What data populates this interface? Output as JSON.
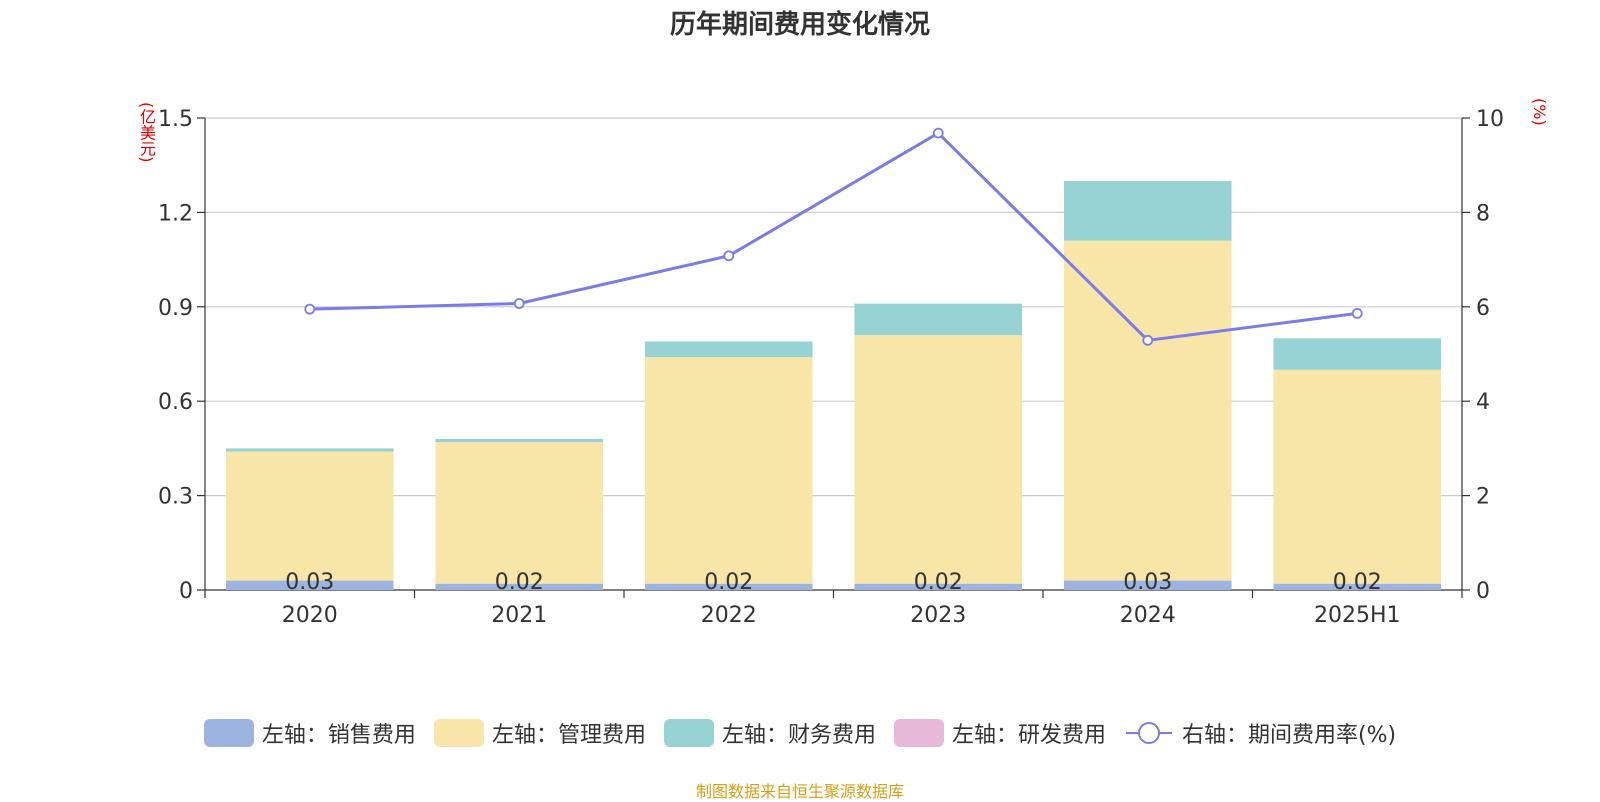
{
  "chart_data": {
    "type": "bar",
    "title": "历年期间费用变化情况",
    "left_axis_unit": "(亿美元)",
    "right_axis_unit": "(%)",
    "categories": [
      "2020",
      "2021",
      "2022",
      "2023",
      "2024",
      "2025H1"
    ],
    "left_ylim": [
      0,
      1.5
    ],
    "left_ticks": [
      "0",
      "0.3",
      "0.6",
      "0.9",
      "1.2",
      "1.5"
    ],
    "right_ylim": [
      0,
      10
    ],
    "right_ticks": [
      "0",
      "2",
      "4",
      "6",
      "8",
      "10"
    ],
    "grid": true,
    "legend_position": "bottom",
    "series": [
      {
        "name": "左轴：销售费用",
        "kind": "bar",
        "axis": "left",
        "color": "#9db4e0",
        "values": [
          0.03,
          0.02,
          0.02,
          0.02,
          0.03,
          0.02
        ],
        "labels": [
          "0.03",
          "0.02",
          "0.02",
          "0.02",
          "0.03",
          "0.02"
        ]
      },
      {
        "name": "左轴：管理费用",
        "kind": "bar",
        "axis": "left",
        "color": "#f7e6a7",
        "values": [
          0.41,
          0.45,
          0.72,
          0.79,
          1.08,
          0.68
        ]
      },
      {
        "name": "左轴：财务费用",
        "kind": "bar",
        "axis": "left",
        "color": "#98d3d3",
        "values": [
          0.01,
          0.01,
          0.05,
          0.1,
          0.19,
          0.1
        ]
      },
      {
        "name": "左轴：研发费用",
        "kind": "bar",
        "axis": "left",
        "color": "#e8b8d8",
        "values": [
          0,
          0,
          0,
          0,
          0,
          0
        ]
      },
      {
        "name": "右轴：期间费用率(%)",
        "kind": "line",
        "axis": "right",
        "color": "#7b7bea",
        "values": [
          5.95,
          6.07,
          7.08,
          9.68,
          5.29,
          5.86
        ]
      }
    ]
  },
  "footer": "制图数据来自恒生聚源数据库"
}
